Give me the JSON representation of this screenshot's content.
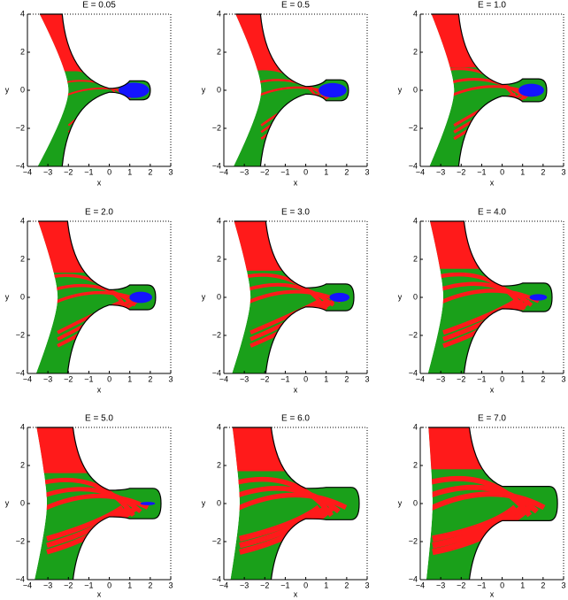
{
  "chart_data": [
    {
      "type": "basin",
      "title": "E = 0.05",
      "xlabel": "x",
      "ylabel": "y",
      "xlim": [
        -4,
        3
      ],
      "ylim": [
        -4,
        4
      ],
      "xticks": [
        {
          "value": -4,
          "label": "−4"
        },
        {
          "value": -3,
          "label": "−3"
        },
        {
          "value": -2,
          "label": "−2"
        },
        {
          "value": -1,
          "label": "−1"
        },
        0,
        1,
        2,
        3
      ],
      "yticks": [
        {
          "value": -4,
          "label": "−4"
        },
        {
          "value": -2,
          "label": "−2"
        },
        0,
        2,
        4
      ]
    },
    {
      "type": "basin",
      "title": "E = 0.5",
      "xlabel": "x",
      "ylabel": "y",
      "xlim": [
        -4,
        3
      ],
      "ylim": [
        -4,
        4
      ],
      "xticks": [
        {
          "value": -4,
          "label": "−4"
        },
        {
          "value": -3,
          "label": "−3"
        },
        {
          "value": -2,
          "label": "−2"
        },
        {
          "value": -1,
          "label": "−1"
        },
        0,
        1,
        2,
        3
      ],
      "yticks": [
        {
          "value": -4,
          "label": "−4"
        },
        {
          "value": -2,
          "label": "−2"
        },
        0,
        2,
        4
      ]
    },
    {
      "type": "basin",
      "title": "E = 1.0",
      "xlabel": "x",
      "ylabel": "y",
      "xlim": [
        -4,
        3
      ],
      "ylim": [
        -4,
        4
      ],
      "xticks": [
        {
          "value": -4,
          "label": "−4"
        },
        {
          "value": -3,
          "label": "−3"
        },
        {
          "value": -2,
          "label": "−2"
        },
        {
          "value": -1,
          "label": "−1"
        },
        0,
        1,
        2,
        3
      ],
      "yticks": [
        {
          "value": -4,
          "label": "−4"
        },
        {
          "value": -2,
          "label": "−2"
        },
        0,
        2,
        4
      ]
    },
    {
      "type": "basin",
      "title": "E = 2.0",
      "xlabel": "x",
      "ylabel": "y",
      "xlim": [
        -4,
        3
      ],
      "ylim": [
        -4,
        4
      ],
      "xticks": [
        {
          "value": -4,
          "label": "−4"
        },
        {
          "value": -3,
          "label": "−3"
        },
        {
          "value": -2,
          "label": "−2"
        },
        {
          "value": -1,
          "label": "−1"
        },
        0,
        1,
        2,
        3
      ],
      "yticks": [
        {
          "value": -4,
          "label": "−4"
        },
        {
          "value": -2,
          "label": "−2"
        },
        0,
        2,
        4
      ]
    },
    {
      "type": "basin",
      "title": "E = 3.0",
      "xlabel": "x",
      "ylabel": "y",
      "xlim": [
        -4,
        3
      ],
      "ylim": [
        -4,
        4
      ],
      "xticks": [
        {
          "value": -4,
          "label": "−4"
        },
        {
          "value": -3,
          "label": "−3"
        },
        {
          "value": -2,
          "label": "−2"
        },
        {
          "value": -1,
          "label": "−1"
        },
        0,
        1,
        2,
        3
      ],
      "yticks": [
        {
          "value": -4,
          "label": "−4"
        },
        {
          "value": -2,
          "label": "−2"
        },
        0,
        2,
        4
      ]
    },
    {
      "type": "basin",
      "title": "E = 4.0",
      "xlabel": "x",
      "ylabel": "y",
      "xlim": [
        -4,
        3
      ],
      "ylim": [
        -4,
        4
      ],
      "xticks": [
        {
          "value": -4,
          "label": "−4"
        },
        {
          "value": -3,
          "label": "−3"
        },
        {
          "value": -2,
          "label": "−2"
        },
        {
          "value": -1,
          "label": "−1"
        },
        0,
        1,
        2,
        3
      ],
      "yticks": [
        {
          "value": -4,
          "label": "−4"
        },
        {
          "value": -2,
          "label": "−2"
        },
        0,
        2,
        4
      ]
    },
    {
      "type": "basin",
      "title": "E = 5.0",
      "xlabel": "x",
      "ylabel": "y",
      "xlim": [
        -4,
        3
      ],
      "ylim": [
        -4,
        4
      ],
      "xticks": [
        {
          "value": -4,
          "label": "−4"
        },
        {
          "value": -3,
          "label": "−3"
        },
        {
          "value": -2,
          "label": "−2"
        },
        {
          "value": -1,
          "label": "−1"
        },
        0,
        1,
        2,
        3
      ],
      "yticks": [
        {
          "value": -4,
          "label": "−4"
        },
        {
          "value": -2,
          "label": "−2"
        },
        0,
        2,
        4
      ]
    },
    {
      "type": "basin",
      "title": "E = 6.0",
      "xlabel": "x",
      "ylabel": "y",
      "xlim": [
        -4,
        3
      ],
      "ylim": [
        -4,
        4
      ],
      "xticks": [
        {
          "value": -4,
          "label": "−4"
        },
        {
          "value": -3,
          "label": "−3"
        },
        {
          "value": -2,
          "label": "−2"
        },
        {
          "value": -1,
          "label": "−1"
        },
        0,
        1,
        2,
        3
      ],
      "yticks": [
        {
          "value": -4,
          "label": "−4"
        },
        {
          "value": -2,
          "label": "−2"
        },
        0,
        2,
        4
      ]
    },
    {
      "type": "basin",
      "title": "E = 7.0",
      "xlabel": "x",
      "ylabel": "y",
      "xlim": [
        -4,
        3
      ],
      "ylim": [
        -4,
        4
      ],
      "xticks": [
        {
          "value": -4,
          "label": "−4"
        },
        {
          "value": -3,
          "label": "−3"
        },
        {
          "value": -2,
          "label": "−2"
        },
        {
          "value": -1,
          "label": "−1"
        },
        0,
        1,
        2,
        3
      ],
      "yticks": [
        {
          "value": -4,
          "label": "−4"
        },
        {
          "value": -2,
          "label": "−2"
        },
        0,
        2,
        4
      ]
    }
  ]
}
